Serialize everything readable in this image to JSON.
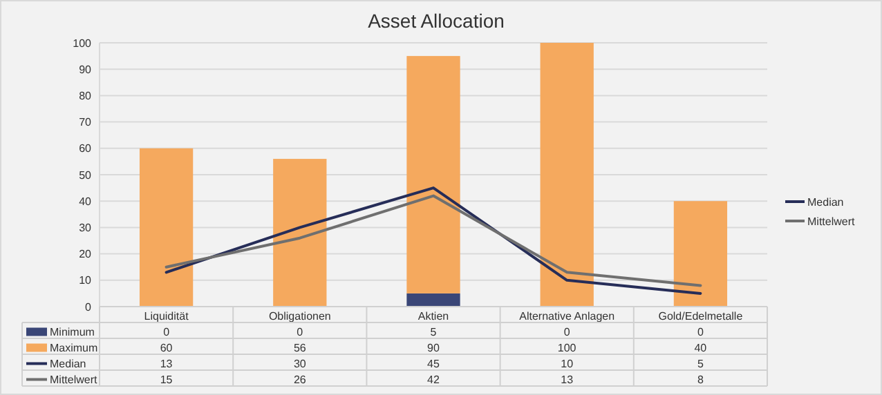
{
  "chart_data": {
    "type": "bar",
    "title": "Asset Allocation",
    "stacked": true,
    "categories": [
      "Liquidität",
      "Obligationen",
      "Aktien",
      "Alternative Anlagen",
      "Gold/Edelmetalle"
    ],
    "series": [
      {
        "name": "Minimum",
        "color": "#3a4677",
        "values": [
          0,
          0,
          5,
          0,
          0
        ]
      },
      {
        "name": "Maximum",
        "color": "#f5a95e",
        "values": [
          60,
          56,
          90,
          100,
          40
        ]
      },
      {
        "name": "Median",
        "type": "line",
        "color": "#262d58",
        "values": [
          13,
          30,
          45,
          10,
          5
        ]
      },
      {
        "name": "Mittelwert",
        "type": "line",
        "color": "#6f6f6f",
        "values": [
          15,
          26,
          42,
          13,
          8
        ]
      }
    ],
    "ylim": [
      0,
      100
    ],
    "yticks": [
      0,
      10,
      20,
      30,
      40,
      50,
      60,
      70,
      80,
      90,
      100
    ],
    "grid": "y",
    "legend": "right",
    "data_labels": true,
    "line_style": "solid",
    "marker": "none"
  }
}
